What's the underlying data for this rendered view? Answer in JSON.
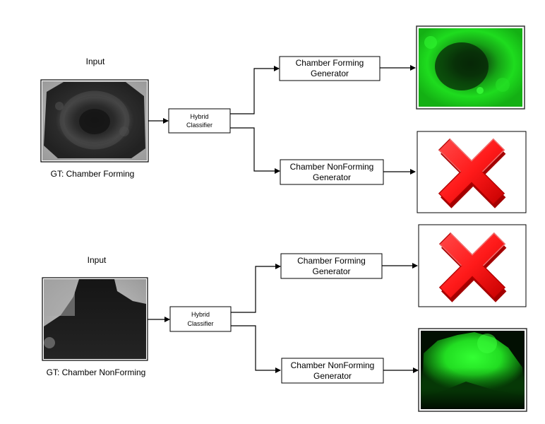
{
  "rows": [
    {
      "input_label": "Input",
      "gt_label": "GT: Chamber Forming",
      "classifier_line1": "Hybrid",
      "classifier_line2": "Classifier",
      "upper_gen_line1": "Chamber Forming",
      "upper_gen_line2": "Generator",
      "lower_gen_line1": "Chamber NonForming",
      "lower_gen_line2": "Generator",
      "upper_output": "green-fluorescence-image",
      "lower_output": "red-x-icon"
    },
    {
      "input_label": "Input",
      "gt_label": "GT: Chamber NonForming",
      "classifier_line1": "Hybrid",
      "classifier_line2": "Classifier",
      "upper_gen_line1": "Chamber Forming",
      "upper_gen_line2": "Generator",
      "lower_gen_line1": "Chamber NonForming",
      "lower_gen_line2": "Generator",
      "upper_output": "red-x-icon",
      "lower_output": "green-fluorescence-image"
    }
  ],
  "colors": {
    "arrow": "#000000",
    "box_border": "#000000",
    "fluorescence": "#22ee22",
    "x_red": "#ff1a1a"
  }
}
